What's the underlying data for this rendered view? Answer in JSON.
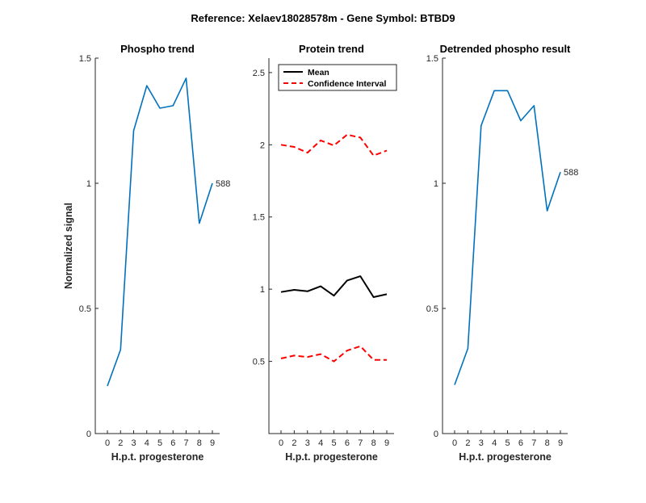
{
  "figure_title": "Reference:  Xelaev18028578m - Gene Symbol:  BTBD9",
  "colors": {
    "phospho": "#0072BD",
    "mean": "#000000",
    "ci": "#FF0000"
  },
  "chart_data": [
    {
      "type": "line",
      "title": "Phospho trend",
      "xlabel": "H.p.t. progesterone",
      "ylabel": "Normalized signal",
      "x_ticks": [
        "0",
        "2",
        "3",
        "4",
        "5",
        "6",
        "7",
        "8",
        "9"
      ],
      "ylim": [
        0,
        1.5
      ],
      "y_ticks": [
        "0",
        "0.5",
        "1",
        "1.5"
      ],
      "series": [
        {
          "values": [
            0.19,
            0.335,
            1.21,
            1.39,
            1.3,
            1.31,
            1.42,
            0.84,
            1.0
          ],
          "end_label": "588"
        }
      ]
    },
    {
      "type": "line",
      "title": "Protein trend",
      "xlabel": "H.p.t. progesterone",
      "ylabel": "",
      "x_ticks": [
        "0",
        "2",
        "3",
        "4",
        "5",
        "6",
        "7",
        "8",
        "9"
      ],
      "ylim": [
        0,
        2.6
      ],
      "y_ticks": [
        "0.5",
        "1",
        "1.5",
        "2",
        "2.5"
      ],
      "legend": {
        "position": "top",
        "entries": [
          "Mean",
          "Confidence Interval"
        ]
      },
      "series": [
        {
          "name": "Mean",
          "values": [
            0.98,
            0.995,
            0.985,
            1.02,
            0.955,
            1.06,
            1.09,
            0.945,
            0.965
          ]
        },
        {
          "name": "Confidence Interval",
          "values": [
            2.0,
            1.985,
            1.945,
            2.03,
            1.995,
            2.07,
            2.05,
            1.925,
            1.96
          ]
        },
        {
          "name": "Confidence Interval",
          "values": [
            0.52,
            0.54,
            0.53,
            0.55,
            0.5,
            0.575,
            0.605,
            0.51,
            0.51
          ]
        }
      ]
    },
    {
      "type": "line",
      "title": "Detrended phospho result",
      "xlabel": "H.p.t. progesterone",
      "ylabel": "",
      "x_ticks": [
        "0",
        "2",
        "3",
        "4",
        "5",
        "6",
        "7",
        "8",
        "9"
      ],
      "ylim": [
        0,
        1.5
      ],
      "y_ticks": [
        "0",
        "0.5",
        "1",
        "1.5"
      ],
      "series": [
        {
          "values": [
            0.195,
            0.34,
            1.23,
            1.37,
            1.37,
            1.25,
            1.31,
            0.89,
            1.045
          ],
          "end_label": "588"
        }
      ]
    }
  ]
}
